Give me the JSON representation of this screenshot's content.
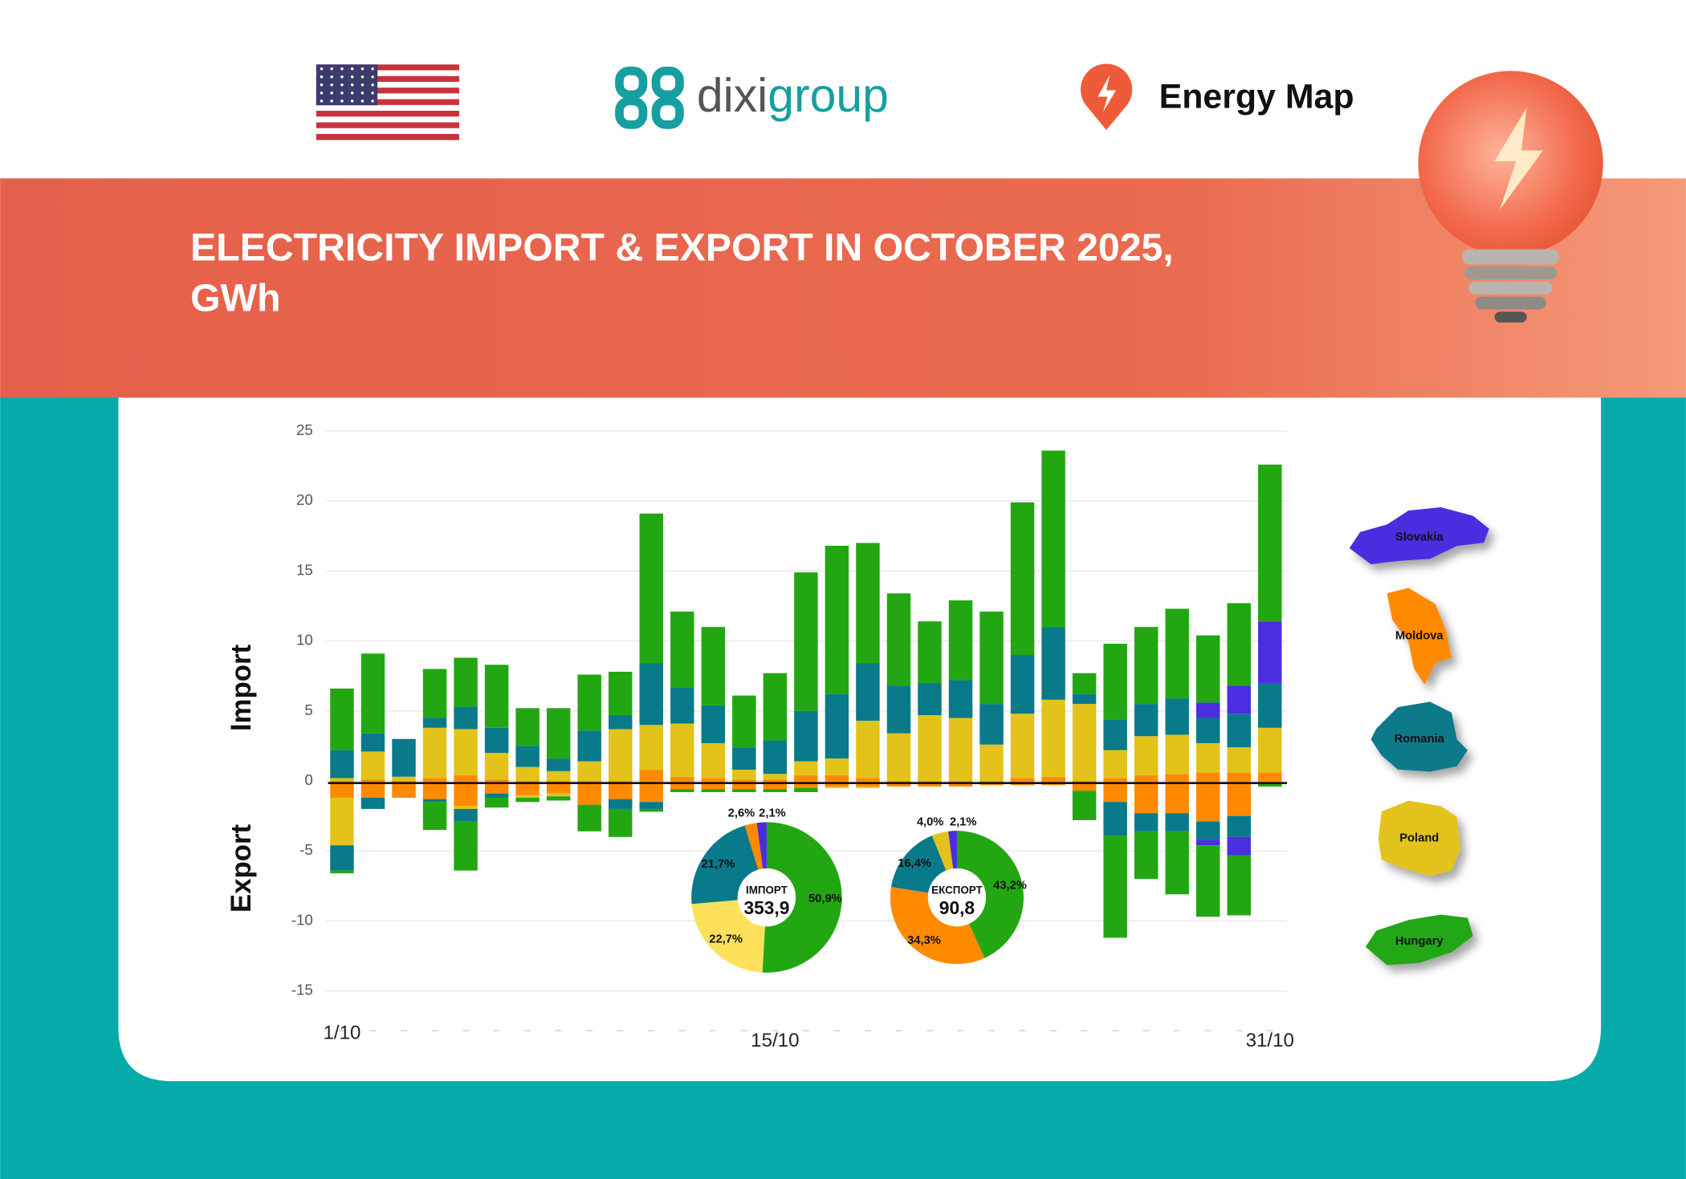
{
  "header": {
    "logo_left": "dixi",
    "logo_right": "group",
    "brand": "Energy Map"
  },
  "chart_data": [
    {
      "type": "bar",
      "stacked": true,
      "title": [
        "ELECTRICITY IMPORT & EXPORT IN OCTOBER 2025,",
        "GWh"
      ],
      "import_label": "Import",
      "export_label": "Export",
      "categories": [
        "1/10",
        null,
        null,
        null,
        null,
        null,
        null,
        null,
        null,
        null,
        null,
        null,
        null,
        null,
        "15/10",
        null,
        null,
        null,
        null,
        null,
        null,
        null,
        null,
        null,
        null,
        null,
        null,
        null,
        null,
        null,
        "31/10"
      ],
      "series": [
        {
          "name": "Moldova",
          "color": "#ff8a00",
          "import": [
            0,
            0.1,
            0,
            0.2,
            0.4,
            0.1,
            0,
            0,
            0,
            0,
            0.8,
            0.3,
            0.2,
            0.1,
            0.1,
            0.4,
            0.4,
            0.2,
            0,
            0,
            0,
            0,
            0.2,
            0.3,
            0,
            0.2,
            0.4,
            0.5,
            0.6,
            0.6,
            0.6
          ],
          "export": [
            -1.2,
            -1.2,
            -1.2,
            -1.3,
            -1.8,
            -0.9,
            -1.0,
            -0.9,
            -1.7,
            -1.3,
            -1.5,
            -0.6,
            -0.6,
            -0.6,
            -0.6,
            -0.5,
            -0.4,
            -0.4,
            -0.4,
            -0.4,
            -0.4,
            -0.3,
            -0.3,
            -0.3,
            -0.7,
            -1.5,
            -2.3,
            -2.3,
            -2.9,
            -2.5,
            -0.2
          ]
        },
        {
          "name": "Poland",
          "color": "#e3c31a",
          "import": [
            0.2,
            2.0,
            0.3,
            3.6,
            3.3,
            1.9,
            1.0,
            0.7,
            1.4,
            3.7,
            3.2,
            3.8,
            2.5,
            0.7,
            0.4,
            1.0,
            1.2,
            4.1,
            3.4,
            4.7,
            4.5,
            2.6,
            4.6,
            5.5,
            5.5,
            2.0,
            2.8,
            2.8,
            2.1,
            1.8,
            3.2
          ],
          "export": [
            -3.4,
            0,
            0,
            0,
            -0.2,
            0,
            -0.2,
            -0.2,
            0,
            0,
            0,
            0,
            0,
            0,
            0,
            0,
            -0.1,
            -0.1,
            0,
            0,
            0,
            0,
            0,
            0,
            0,
            0,
            0,
            0,
            0,
            0,
            0
          ]
        },
        {
          "name": "Romania",
          "color": "#087a8a",
          "import": [
            2.0,
            1.3,
            2.7,
            0.7,
            1.6,
            1.8,
            1.5,
            0.9,
            2.2,
            1.0,
            4.4,
            2.6,
            2.7,
            1.6,
            2.4,
            3.6,
            4.6,
            4.1,
            3.4,
            2.3,
            2.7,
            2.9,
            4.2,
            5.2,
            0.7,
            2.2,
            2.3,
            2.6,
            1.8,
            2.4,
            3.2
          ],
          "export": [
            -1.8,
            -0.8,
            0,
            -0.2,
            -0.9,
            -0.3,
            0,
            0,
            0,
            -0.7,
            -0.5,
            0,
            0,
            0,
            0,
            0,
            0,
            0,
            0,
            0,
            0,
            0,
            0,
            0,
            0,
            -2.4,
            -1.3,
            -1.3,
            -1.3,
            -1.5,
            0
          ]
        },
        {
          "name": "Slovakia",
          "color": "#4a2ee0",
          "import": [
            0,
            0,
            0,
            0,
            0,
            0,
            0,
            0,
            0,
            0,
            0,
            0,
            0,
            0,
            0,
            0,
            0,
            0,
            0,
            0,
            0,
            0,
            0,
            0,
            0,
            0,
            0,
            0,
            1.1,
            2.0,
            4.4
          ],
          "export": [
            0,
            0,
            0,
            0,
            0,
            0,
            0,
            0,
            0,
            0,
            0,
            0,
            0,
            0,
            0,
            0,
            0,
            0,
            0,
            0,
            0,
            0,
            0,
            0,
            0,
            0,
            0,
            0,
            -0.4,
            -1.3,
            0
          ]
        },
        {
          "name": "Hungary",
          "color": "#22a712",
          "import": [
            4.4,
            5.7,
            0,
            3.5,
            3.5,
            4.5,
            2.7,
            3.6,
            4.0,
            3.1,
            10.7,
            5.4,
            5.6,
            3.7,
            4.8,
            9.9,
            10.6,
            8.6,
            6.6,
            4.4,
            5.7,
            6.6,
            10.9,
            12.6,
            1.5,
            5.4,
            5.5,
            6.4,
            4.8,
            5.9,
            11.2
          ],
          "export": [
            -0.2,
            0,
            0,
            -2.0,
            -3.5,
            -0.7,
            -0.3,
            -0.3,
            -1.9,
            -2.0,
            -0.2,
            -0.2,
            -0.2,
            -0.2,
            -0.2,
            -0.3,
            0,
            0,
            0,
            0,
            0,
            0,
            0,
            0,
            -2.1,
            -7.3,
            -3.4,
            -4.5,
            -5.1,
            -4.3,
            -0.2
          ]
        }
      ],
      "ylim": [
        -15,
        25
      ],
      "yticks": [
        -15,
        -10,
        -5,
        0,
        5,
        10,
        15,
        20,
        25
      ],
      "grid": true
    },
    {
      "type": "pie",
      "center_label": "ІМПОРТ",
      "total": {
        "value": 353.9,
        "label": "353,9"
      },
      "values": [
        50.9,
        22.7,
        21.7,
        2.6,
        2.1
      ],
      "value_labels": [
        "50,9%",
        "22,7%",
        "21,7%",
        "2,6%",
        "2,1%"
      ],
      "colors": [
        "#22a712",
        "#fde05a",
        "#087a8a",
        "#ff8a00",
        "#4a2ee0"
      ]
    },
    {
      "type": "pie",
      "center_label": "ЕКСПОРТ",
      "total": {
        "value": 90.8,
        "label": "90,8"
      },
      "values": [
        43.2,
        34.3,
        16.4,
        4.0,
        2.1
      ],
      "value_labels": [
        "43,2%",
        "34,3%",
        "16,4%",
        "4,0%",
        "2,1%"
      ],
      "colors": [
        "#22a712",
        "#ff8a00",
        "#087a8a",
        "#e3c31a",
        "#4a2ee0"
      ]
    }
  ]
}
